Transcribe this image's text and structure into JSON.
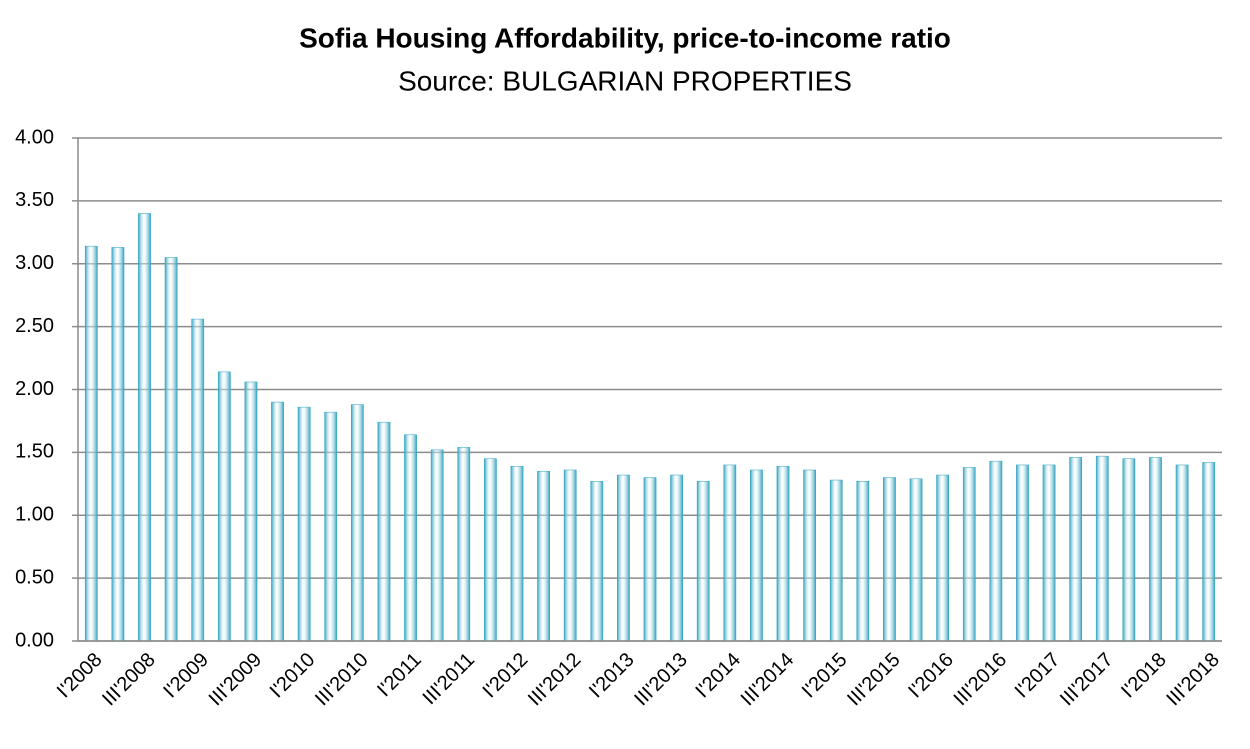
{
  "chart_data": {
    "type": "bar",
    "title": "Sofia Housing Affordability, price-to-income ratio",
    "subtitle": "Source: BULGARIAN PROPERTIES",
    "categories": [
      "I'2008",
      null,
      "III'2008",
      null,
      "I'2009",
      null,
      "III'2009",
      null,
      "I'2010",
      null,
      "III'2010",
      null,
      "I'2011",
      null,
      "III'2011",
      null,
      "I'2012",
      null,
      "III'2012",
      null,
      "I'2013",
      null,
      "III'2013",
      null,
      "I'2014",
      null,
      "III'2014",
      null,
      "I'2015",
      null,
      "III'2015",
      null,
      "I'2016",
      null,
      "III'2016",
      null,
      "I'2017",
      null,
      "III'2017",
      null,
      "I'2018",
      null,
      "III'2018"
    ],
    "values": [
      3.14,
      3.13,
      3.4,
      3.05,
      2.56,
      2.14,
      2.06,
      1.9,
      1.86,
      1.82,
      1.88,
      1.74,
      1.64,
      1.52,
      1.54,
      1.45,
      1.39,
      1.35,
      1.36,
      1.27,
      1.32,
      1.3,
      1.32,
      1.27,
      1.4,
      1.36,
      1.39,
      1.36,
      1.28,
      1.27,
      1.3,
      1.29,
      1.32,
      1.38,
      1.43,
      1.4,
      1.4,
      1.46,
      1.47,
      1.45,
      1.46,
      1.4,
      1.42
    ],
    "color": "#31a3c0",
    "ylim": [
      0,
      4
    ],
    "yticks": [
      {
        "value": 0,
        "label": "0.00"
      },
      {
        "value": 0.5,
        "label": "0.50"
      },
      {
        "value": 1,
        "label": "1.00"
      },
      {
        "value": 1.5,
        "label": "1.50"
      },
      {
        "value": 2,
        "label": "2.00"
      },
      {
        "value": 2.5,
        "label": "2.50"
      },
      {
        "value": 3,
        "label": "3.00"
      },
      {
        "value": 3.5,
        "label": "3.50"
      },
      {
        "value": 4,
        "label": "4.00"
      }
    ],
    "grid": true
  }
}
